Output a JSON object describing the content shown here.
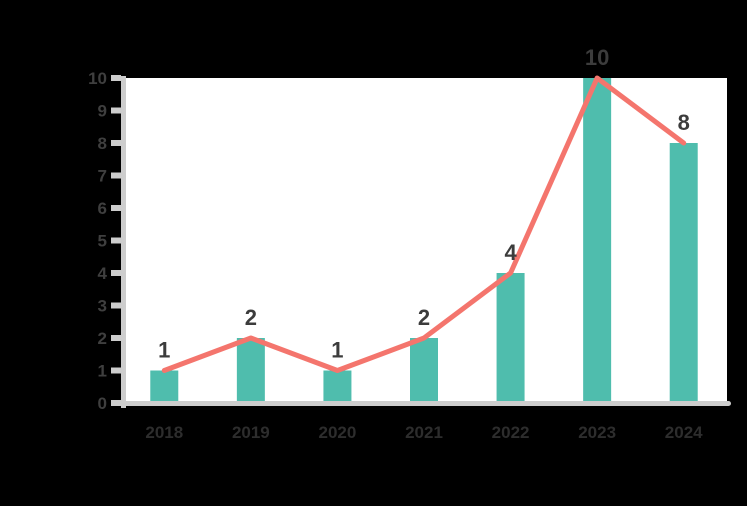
{
  "chart_data": {
    "type": "bar",
    "title": "",
    "xlabel": "",
    "ylabel": "",
    "categories": [
      "2018",
      "2019",
      "2020",
      "2021",
      "2022",
      "2023",
      "2024"
    ],
    "series": [
      {
        "name": "bars",
        "type": "bar",
        "values": [
          1,
          2,
          1,
          2,
          4,
          10,
          8
        ]
      },
      {
        "name": "trend-line",
        "type": "line",
        "values": [
          1,
          2,
          1,
          2,
          4,
          10,
          8
        ]
      }
    ],
    "data_labels": [
      "1",
      "2",
      "1",
      "2",
      "4",
      "10",
      "8"
    ],
    "ylim": [
      0,
      10
    ],
    "yticks": [
      0,
      1,
      2,
      3,
      4,
      5,
      6,
      7,
      8,
      9,
      10
    ],
    "grid": false,
    "legend": false,
    "colors": {
      "bar": "#4FBDAD",
      "line": "#F4756D",
      "axis": "#CDCDCD",
      "data_label": "#3C3C3C",
      "y_label": "#3F3F3F",
      "x_label": "#2D2D2D",
      "plot_bg": "#FFFFFF",
      "page_bg": "#000000"
    }
  }
}
